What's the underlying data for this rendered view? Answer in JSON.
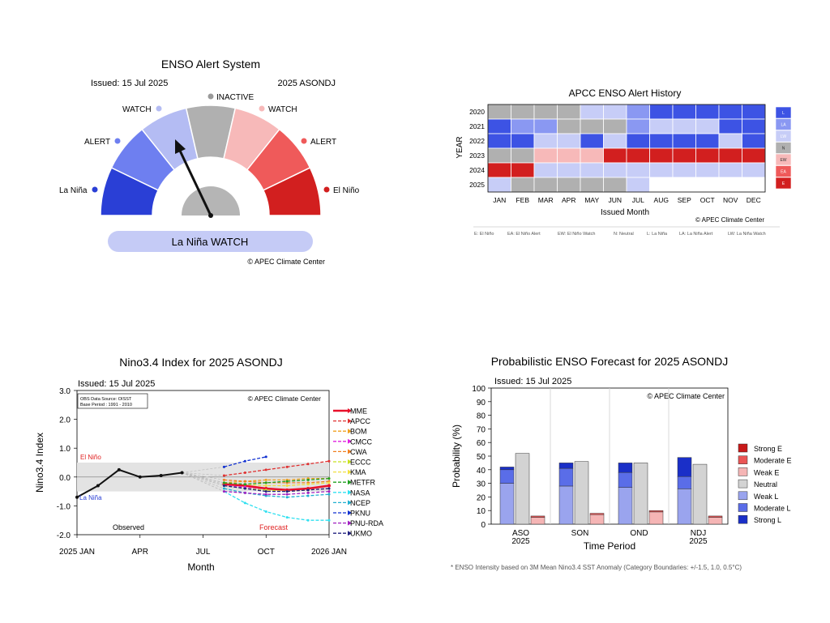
{
  "colors": {
    "strong_ln": "#2a3fd6",
    "mod_ln": "#6e7ff0",
    "weak_ln": "#b4bcf3",
    "neutral": "#b0b0b0",
    "weak_en": "#f7b9b9",
    "mod_en": "#ef5a5a",
    "strong_en": "#d21f1f",
    "watch_bar": "#c5cbf6"
  },
  "gauge": {
    "title": "ENSO Alert System",
    "issued": "Issued: 15 Jul 2025",
    "period": "2025 ASONDJ",
    "labels": {
      "inactive": "INACTIVE",
      "watch_left": "WATCH",
      "watch_right": "WATCH",
      "alert_left": "ALERT",
      "alert_right": "ALERT",
      "la_nina": "La Niña",
      "el_nino": "El Niño"
    },
    "status": "La Niña WATCH",
    "copyright": "© APEC Climate Center"
  },
  "history": {
    "title": "APCC ENSO Alert History",
    "ylabel": "YEAR",
    "xlabel": "Issued Month",
    "years": [
      "2020",
      "2021",
      "2022",
      "2023",
      "2024",
      "2025"
    ],
    "months": [
      "JAN",
      "FEB",
      "MAR",
      "APR",
      "MAY",
      "JUN",
      "JUL",
      "AUG",
      "SEP",
      "OCT",
      "NOV",
      "DEC"
    ],
    "grid": [
      [
        "N",
        "N",
        "N",
        "N",
        "L",
        "L",
        "LW",
        "LA",
        "LA",
        "LA",
        "LA",
        "LA"
      ],
      [
        "LA",
        "LW",
        "LW",
        "N",
        "N",
        "N",
        "LW",
        "L",
        "L",
        "L",
        "LA",
        "LA"
      ],
      [
        "LA",
        "LA",
        "L",
        "L",
        "LA",
        "L",
        "LA",
        "LA",
        "LA",
        "LA",
        "L",
        "LA"
      ],
      [
        "N",
        "N",
        "EW",
        "EW",
        "EW",
        "EA",
        "EA",
        "EA",
        "EA",
        "EA",
        "EA",
        "EA"
      ],
      [
        "EA",
        "EA",
        "L",
        "L",
        "L",
        "L",
        "L",
        "L",
        "L",
        "L",
        "L",
        "L"
      ],
      [
        "L",
        "N",
        "N",
        "N",
        "N",
        "N",
        "L",
        "",
        "",
        "",
        "",
        ""
      ]
    ],
    "legend": [
      "L",
      "LA",
      "LW",
      "N",
      "EW",
      "EA",
      "E"
    ],
    "copyright": "© APEC Climate Center",
    "footnote": [
      "E: El Niño",
      "EA: El Niño Alert",
      "EW: El Niño Watch",
      "N: Neutral",
      "L: La Niña",
      "LA: La Niña Alert",
      "LW: La Niña Watch"
    ]
  },
  "nino": {
    "title": "Nino3.4 Index for 2025 ASONDJ",
    "issued": "Issued: 15 Jul 2025",
    "info1": "OBS Data Source: OISST",
    "info2": "Base Period : 1991 - 2010",
    "copyright": "© APEC Climate Center",
    "elnino_label": "El Niño",
    "lanina_label": "La Niña",
    "observed_label": "Observed",
    "forecast_label": "Forecast"
  },
  "prob": {
    "title": "Probabilistic ENSO Forecast for 2025 ASONDJ",
    "issued": "Issued: 15 Jul 2025",
    "copyright": "© APEC Climate Center",
    "footnote": "* ENSO Intensity based on 3M Mean Nino3.4 SST Anomaly (Category Boundaries: +/-1.5, 1.0, 0.5°C)"
  },
  "chart_data": [
    {
      "type": "line",
      "title": "Nino3.4 Index for 2025 ASONDJ",
      "xlabel": "Month",
      "ylabel": "Nino3.4 Index",
      "ylim": [
        -2.0,
        3.0
      ],
      "yticks": [
        "3.0",
        "2.0",
        "1.0",
        "0.0",
        "-1.0",
        "-2.0"
      ],
      "xticks": [
        "2025 JAN",
        "APR",
        "JUL",
        "OCT",
        "2026 JAN"
      ],
      "neutral_band": [
        -0.5,
        0.5
      ],
      "observed": {
        "x": [
          0,
          1,
          2,
          3,
          4,
          5
        ],
        "y": [
          -0.7,
          -0.3,
          0.25,
          0.0,
          0.05,
          0.15
        ]
      },
      "series": [
        {
          "name": "MME",
          "color": "#e8102a",
          "x": [
            7,
            8,
            9,
            10,
            11,
            12
          ],
          "y": [
            -0.25,
            -0.3,
            -0.4,
            -0.45,
            -0.4,
            -0.3
          ]
        },
        {
          "name": "APCC",
          "color": "#e03030",
          "x": [
            7,
            8,
            9,
            10,
            11,
            12
          ],
          "y": [
            0.05,
            0.15,
            0.25,
            0.35,
            0.45,
            0.55
          ]
        },
        {
          "name": "BOM",
          "color": "#f0a020",
          "x": [
            7,
            8,
            9,
            10,
            11,
            12
          ],
          "y": [
            -0.2,
            -0.15,
            -0.1,
            -0.1,
            -0.05,
            -0.05
          ]
        },
        {
          "name": "CMCC",
          "color": "#e020e0",
          "x": [
            7,
            8,
            9,
            10,
            11,
            12
          ],
          "y": [
            -0.3,
            -0.35,
            -0.45,
            -0.5,
            -0.45,
            -0.4
          ]
        },
        {
          "name": "CWA",
          "color": "#f08020",
          "x": [
            7,
            8,
            9,
            10,
            11,
            12
          ],
          "y": [
            -0.1,
            -0.15,
            -0.2,
            -0.2,
            -0.2,
            -0.15
          ]
        },
        {
          "name": "ECCC",
          "color": "#c8e020",
          "x": [
            7,
            8,
            9,
            10,
            11,
            12
          ],
          "y": [
            -0.3,
            -0.4,
            -0.45,
            -0.5,
            -0.45,
            -0.4
          ]
        },
        {
          "name": "KMA",
          "color": "#f0e040",
          "x": [
            7,
            8,
            9,
            10,
            11,
            12
          ],
          "y": [
            -0.2,
            -0.25,
            -0.3,
            -0.3,
            -0.25,
            -0.2
          ]
        },
        {
          "name": "METFR",
          "color": "#20a020",
          "x": [
            7,
            8,
            9,
            10,
            11,
            12
          ],
          "y": [
            -0.2,
            -0.25,
            -0.2,
            -0.15,
            -0.1,
            -0.05
          ]
        },
        {
          "name": "NASA",
          "color": "#30e0f0",
          "x": [
            7,
            8,
            9,
            10,
            11,
            12
          ],
          "y": [
            -0.5,
            -0.9,
            -1.2,
            -1.4,
            -1.5,
            -1.5
          ]
        },
        {
          "name": "NCEP",
          "color": "#20b0d0",
          "x": [
            7,
            8,
            9,
            10,
            11,
            12
          ],
          "y": [
            -0.4,
            -0.55,
            -0.65,
            -0.7,
            -0.65,
            -0.6
          ]
        },
        {
          "name": "PKNU",
          "color": "#1030d0",
          "x": [
            7,
            8,
            9
          ],
          "y": [
            0.35,
            0.55,
            0.7
          ]
        },
        {
          "name": "PNU-RDA",
          "color": "#a020c0",
          "x": [
            7,
            8,
            9,
            10,
            11,
            12
          ],
          "y": [
            -0.5,
            -0.55,
            -0.6,
            -0.6,
            -0.55,
            -0.5
          ]
        },
        {
          "name": "UKMO",
          "color": "#202080",
          "x": [
            7,
            8,
            9,
            10,
            11,
            12
          ],
          "y": [
            -0.3,
            -0.4,
            -0.5,
            -0.5,
            -0.45,
            -0.4
          ]
        }
      ]
    },
    {
      "type": "bar",
      "title": "Probabilistic ENSO Forecast for 2025 ASONDJ",
      "xlabel": "Time Period",
      "ylabel": "Probability (%)",
      "ylim": [
        0,
        100
      ],
      "yticks": [
        "0",
        "10",
        "20",
        "30",
        "40",
        "50",
        "60",
        "70",
        "80",
        "90",
        "100"
      ],
      "categories": [
        [
          "ASO",
          "2025"
        ],
        [
          "SON",
          ""
        ],
        [
          "OND",
          ""
        ],
        [
          "NDJ",
          "2025"
        ]
      ],
      "la_nina": {
        "weak": [
          30,
          28,
          27,
          26
        ],
        "moderate": [
          10,
          13,
          11,
          9
        ],
        "strong": [
          2,
          4,
          7,
          14
        ]
      },
      "neutral": [
        52,
        46,
        45,
        44
      ],
      "el_nino": {
        "weak": [
          5,
          7,
          9,
          5
        ],
        "moderate": [
          1,
          1,
          1,
          1
        ],
        "strong": [
          0,
          0,
          0,
          0
        ]
      },
      "legend": [
        "Strong E",
        "Moderate E",
        "Weak E",
        "Neutral",
        "Weak L",
        "Moderate L",
        "Strong L"
      ]
    }
  ]
}
